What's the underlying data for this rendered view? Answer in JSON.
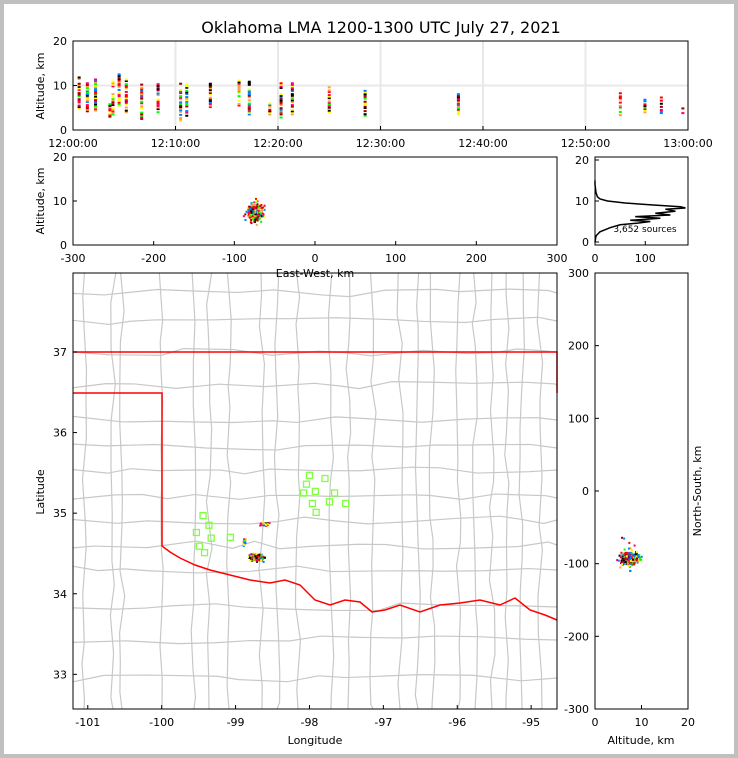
{
  "chart_data": [
    {
      "type": "scatter",
      "name": "time-altitude",
      "title": "Oklahoma LMA 1200-1300 UTC July 27, 2021",
      "xlabel": "",
      "ylabel": "Altitude, km",
      "xlim_minutes": [
        0,
        60
      ],
      "ylim": [
        0,
        20
      ],
      "xticks": [
        "12:00:00",
        "12:10:00",
        "12:20:00",
        "12:30:00",
        "12:40:00",
        "12:50:00",
        "13:00:00"
      ],
      "yticks": [
        "0",
        "10",
        "20"
      ],
      "grid": true,
      "flash_columns": [
        {
          "t": 0.6,
          "alt": [
            4.8,
            12
          ]
        },
        {
          "t": 1.4,
          "alt": [
            4.2,
            10.5
          ]
        },
        {
          "t": 2.2,
          "alt": [
            4,
            11.5
          ]
        },
        {
          "t": 3.6,
          "alt": [
            3,
            5.8
          ]
        },
        {
          "t": 3.9,
          "alt": [
            3.5,
            11.4
          ]
        },
        {
          "t": 4.5,
          "alt": [
            5.5,
            12.8
          ]
        },
        {
          "t": 5.2,
          "alt": [
            4,
            11.4
          ]
        },
        {
          "t": 6.7,
          "alt": [
            2.5,
            10.5
          ]
        },
        {
          "t": 8.3,
          "alt": [
            4,
            10.8
          ]
        },
        {
          "t": 10.5,
          "alt": [
            2,
            11
          ]
        },
        {
          "t": 11.1,
          "alt": [
            3.2,
            10.2
          ]
        },
        {
          "t": 13.4,
          "alt": [
            4.8,
            11
          ]
        },
        {
          "t": 16.2,
          "alt": [
            5.5,
            11.2
          ]
        },
        {
          "t": 17.2,
          "alt": [
            3.5,
            11.2
          ]
        },
        {
          "t": 19.2,
          "alt": [
            3.5,
            6
          ]
        },
        {
          "t": 20.3,
          "alt": [
            2.8,
            10.5
          ]
        },
        {
          "t": 21.4,
          "alt": [
            3.5,
            10.5
          ]
        },
        {
          "t": 25.0,
          "alt": [
            4,
            9.8
          ]
        },
        {
          "t": 28.5,
          "alt": [
            3.2,
            9.8
          ]
        },
        {
          "t": 37.6,
          "alt": [
            3.5,
            8.2
          ]
        },
        {
          "t": 53.4,
          "alt": [
            3,
            8.3
          ]
        },
        {
          "t": 55.8,
          "alt": [
            4,
            7
          ]
        },
        {
          "t": 57.4,
          "alt": [
            3.8,
            7.5
          ]
        },
        {
          "t": 59.5,
          "alt": [
            3.8,
            5.5
          ]
        }
      ]
    },
    {
      "type": "scatter",
      "name": "east-west-altitude",
      "xlabel": "East-West, km",
      "ylabel": "Altitude, km",
      "xlim": [
        -300,
        300
      ],
      "ylim": [
        0,
        20
      ],
      "xticks": [
        "-300",
        "-200",
        "-100",
        "0",
        "100",
        "200",
        "300"
      ],
      "yticks": [
        "0",
        "10",
        "20"
      ],
      "cluster": {
        "ew": [
          -95,
          -60
        ],
        "alt": [
          2,
          13
        ],
        "center_ew": -75,
        "center_alt": 7.5
      }
    },
    {
      "type": "line",
      "name": "altitude-histogram",
      "annotation": "3,652 sources",
      "xlim": [
        0,
        185
      ],
      "ylim": [
        0,
        20
      ],
      "xticks": [
        "0",
        "100"
      ],
      "yticks": [
        "0",
        "10",
        "20"
      ],
      "altitude_km": [
        0,
        1.5,
        2.5,
        3.5,
        4.2,
        4.6,
        5.0,
        5.3,
        5.8,
        6.2,
        6.6,
        7.0,
        7.5,
        8.0,
        8.3,
        8.6,
        9.0,
        9.5,
        10.0,
        10.5,
        11,
        12,
        13,
        14,
        15
      ],
      "count": [
        0,
        2,
        10,
        30,
        50,
        85,
        110,
        70,
        130,
        80,
        150,
        120,
        160,
        140,
        180,
        170,
        120,
        60,
        25,
        10,
        5,
        2,
        1,
        0,
        0
      ]
    },
    {
      "type": "scatter",
      "name": "plan-view-map",
      "xlabel": "Longitude",
      "ylabel": "Latitude",
      "xlim": [
        -101.2,
        -94.65
      ],
      "ylim": [
        32.57,
        37.98
      ],
      "xticks": [
        "-101",
        "-100",
        "-99",
        "-98",
        "-97",
        "-96",
        "-95"
      ],
      "yticks": [
        "33",
        "34",
        "35",
        "36",
        "37"
      ],
      "stations": [
        [
          -99.44,
          34.97
        ],
        [
          -99.36,
          34.85
        ],
        [
          -99.53,
          34.76
        ],
        [
          -99.33,
          34.69
        ],
        [
          -99.49,
          34.59
        ],
        [
          -99.42,
          34.51
        ],
        [
          -99.07,
          34.7
        ],
        [
          -98.0,
          35.47
        ],
        [
          -98.04,
          35.36
        ],
        [
          -98.08,
          35.25
        ],
        [
          -97.92,
          35.27
        ],
        [
          -97.79,
          35.43
        ],
        [
          -97.66,
          35.25
        ],
        [
          -97.96,
          35.12
        ],
        [
          -97.91,
          35.01
        ],
        [
          -97.73,
          35.14
        ],
        [
          -97.51,
          35.12
        ]
      ],
      "source_clusters": [
        {
          "lon": -98.72,
          "lat": 34.45,
          "spread": [
            0.15,
            0.07
          ],
          "n": 220
        },
        {
          "lon": -98.6,
          "lat": 34.86,
          "spread": [
            0.1,
            0.03
          ],
          "n": 40
        },
        {
          "lon": -98.88,
          "lat": 34.65,
          "spread": [
            0.03,
            0.08
          ],
          "n": 25
        }
      ]
    },
    {
      "type": "scatter",
      "name": "altitude-north-south",
      "xlabel": "Altitude, km",
      "ylabel": "North-South, km",
      "xlim": [
        0,
        20
      ],
      "ylim": [
        -300,
        300
      ],
      "xticks": [
        "0",
        "10",
        "20"
      ],
      "yticks": [
        "-300",
        "-200",
        "-100",
        "0",
        "100",
        "200",
        "300"
      ],
      "cluster": {
        "alt": [
          2,
          14
        ],
        "ns": [
          -110,
          -40
        ],
        "center_ns": -93,
        "center_alt": 7.5
      }
    }
  ],
  "colors": {
    "sources": [
      "#0080ff",
      "#00ff00",
      "#ffff00",
      "#ffa040",
      "#ff0000",
      "#ff0060",
      "#a00000",
      "#000000"
    ],
    "station": "#80ff40",
    "border": "#ff0000",
    "county": "#c8c8c8",
    "grid": "#e8e8e8"
  }
}
